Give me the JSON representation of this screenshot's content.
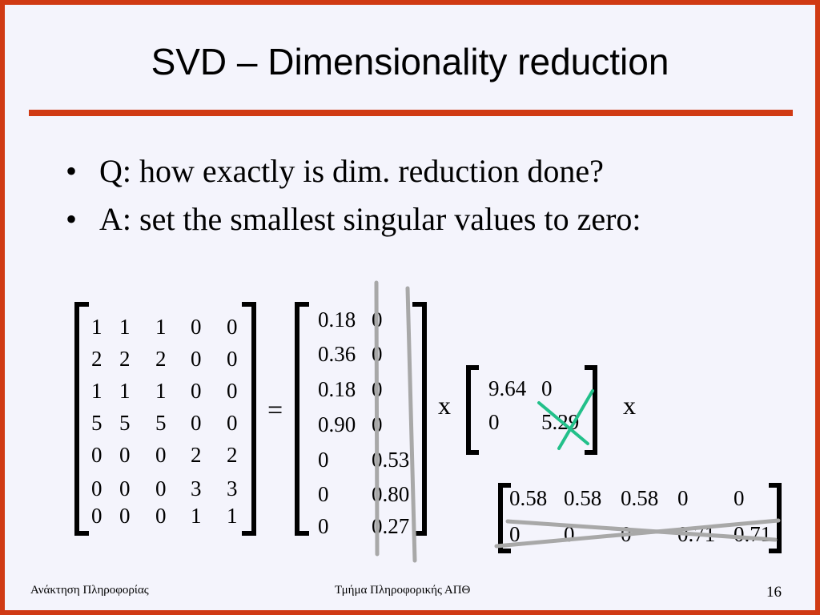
{
  "slide": {
    "title": "SVD – Dimensionality reduction",
    "bullets": [
      {
        "marker": "•",
        "text": "Q: how exactly is dim. reduction done?"
      },
      {
        "marker": "•",
        "text": "A: set the smallest singular values to zero:"
      }
    ]
  },
  "equation": {
    "equals": "=",
    "times_1": "x",
    "times_2": "x",
    "A": [
      [
        "1",
        "1",
        "1",
        "0",
        "0"
      ],
      [
        "2",
        "2",
        "2",
        "0",
        "0"
      ],
      [
        "1",
        "1",
        "1",
        "0",
        "0"
      ],
      [
        "5",
        "5",
        "5",
        "0",
        "0"
      ],
      [
        "0",
        "0",
        "0",
        "2",
        "2"
      ],
      [
        "0",
        "0",
        "0",
        "3",
        "3"
      ],
      [
        "0",
        "0",
        "0",
        "1",
        "1"
      ]
    ],
    "U": [
      [
        "0.18",
        "0"
      ],
      [
        "0.36",
        "0"
      ],
      [
        "0.18",
        "0"
      ],
      [
        "0.90",
        "0"
      ],
      [
        "0",
        "0.53"
      ],
      [
        "0",
        "0.80"
      ],
      [
        "0",
        "0.27"
      ]
    ],
    "Sigma": [
      [
        "9.64",
        "0"
      ],
      [
        "0",
        "5.29"
      ]
    ],
    "VT": [
      [
        "0.58",
        "0.58",
        "0.58",
        "0",
        "0"
      ],
      [
        "0",
        "0",
        "0",
        "0.71",
        "0.71"
      ]
    ]
  },
  "colors": {
    "accent": "#d03a14",
    "slide_bg": "#f4f4fc",
    "strike_gray": "#a8a8a8",
    "strike_green": "#22c08a"
  },
  "footer": {
    "left": "Ανάκτηση Πληροφορίας",
    "center": "Τμήμα Πληροφορικής ΑΠΘ",
    "page": "16"
  }
}
